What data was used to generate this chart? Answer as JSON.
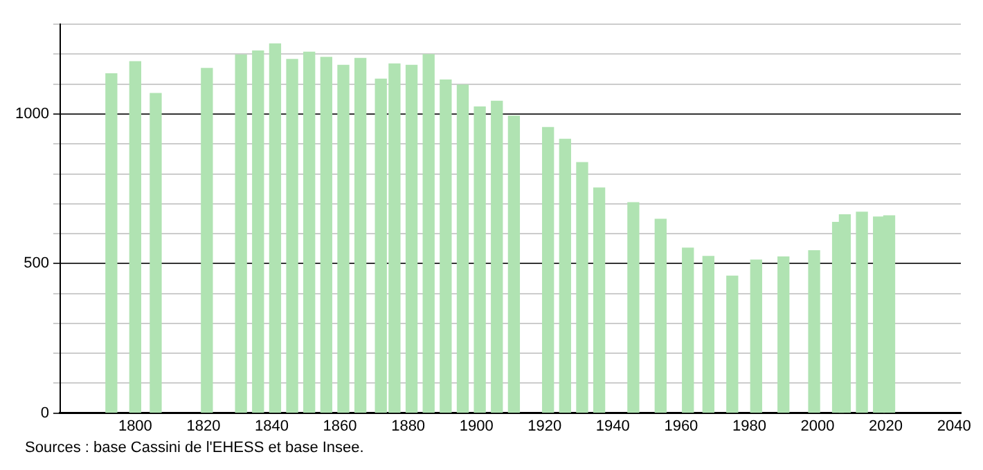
{
  "chart_data": {
    "type": "bar",
    "x": [
      1793,
      1800,
      1806,
      1821,
      1831,
      1836,
      1841,
      1846,
      1851,
      1856,
      1861,
      1866,
      1872,
      1876,
      1881,
      1886,
      1891,
      1896,
      1901,
      1906,
      1911,
      1921,
      1926,
      1931,
      1936,
      1946,
      1954,
      1962,
      1968,
      1975,
      1982,
      1990,
      1999,
      2006,
      2008,
      2013,
      2018,
      2021
    ],
    "values": [
      1135,
      1175,
      1069,
      1153,
      1198,
      1211,
      1235,
      1183,
      1207,
      1190,
      1163,
      1186,
      1117,
      1168,
      1163,
      1199,
      1114,
      1097,
      1024,
      1043,
      993,
      955,
      916,
      838,
      753,
      704,
      648,
      552,
      524,
      458,
      512,
      522,
      543,
      638,
      663,
      672,
      656,
      660
    ],
    "color": "#b0e3b2",
    "xlim": [
      1778,
      2042
    ],
    "xticks": [
      1800,
      1820,
      1840,
      1860,
      1880,
      1900,
      1920,
      1940,
      1960,
      1980,
      2000,
      2020,
      2040
    ],
    "ylim": [
      0,
      1300
    ],
    "yticks": [
      0,
      {
        "value": 100,
        "label": null
      },
      {
        "value": 200,
        "label": null
      },
      {
        "value": 300,
        "label": null
      },
      {
        "value": 400,
        "label": null
      },
      500,
      {
        "value": 600,
        "label": null
      },
      {
        "value": 700,
        "label": null
      },
      {
        "value": 800,
        "label": null
      },
      {
        "value": 900,
        "label": null
      },
      1000,
      {
        "value": 1100,
        "label": null
      },
      {
        "value": 1200,
        "label": null
      },
      {
        "value": 1300,
        "label": null
      }
    ],
    "grid": "y",
    "legend": false,
    "annotations": [
      "Sources : base Cassini de l'EHESS et base Insee."
    ]
  }
}
